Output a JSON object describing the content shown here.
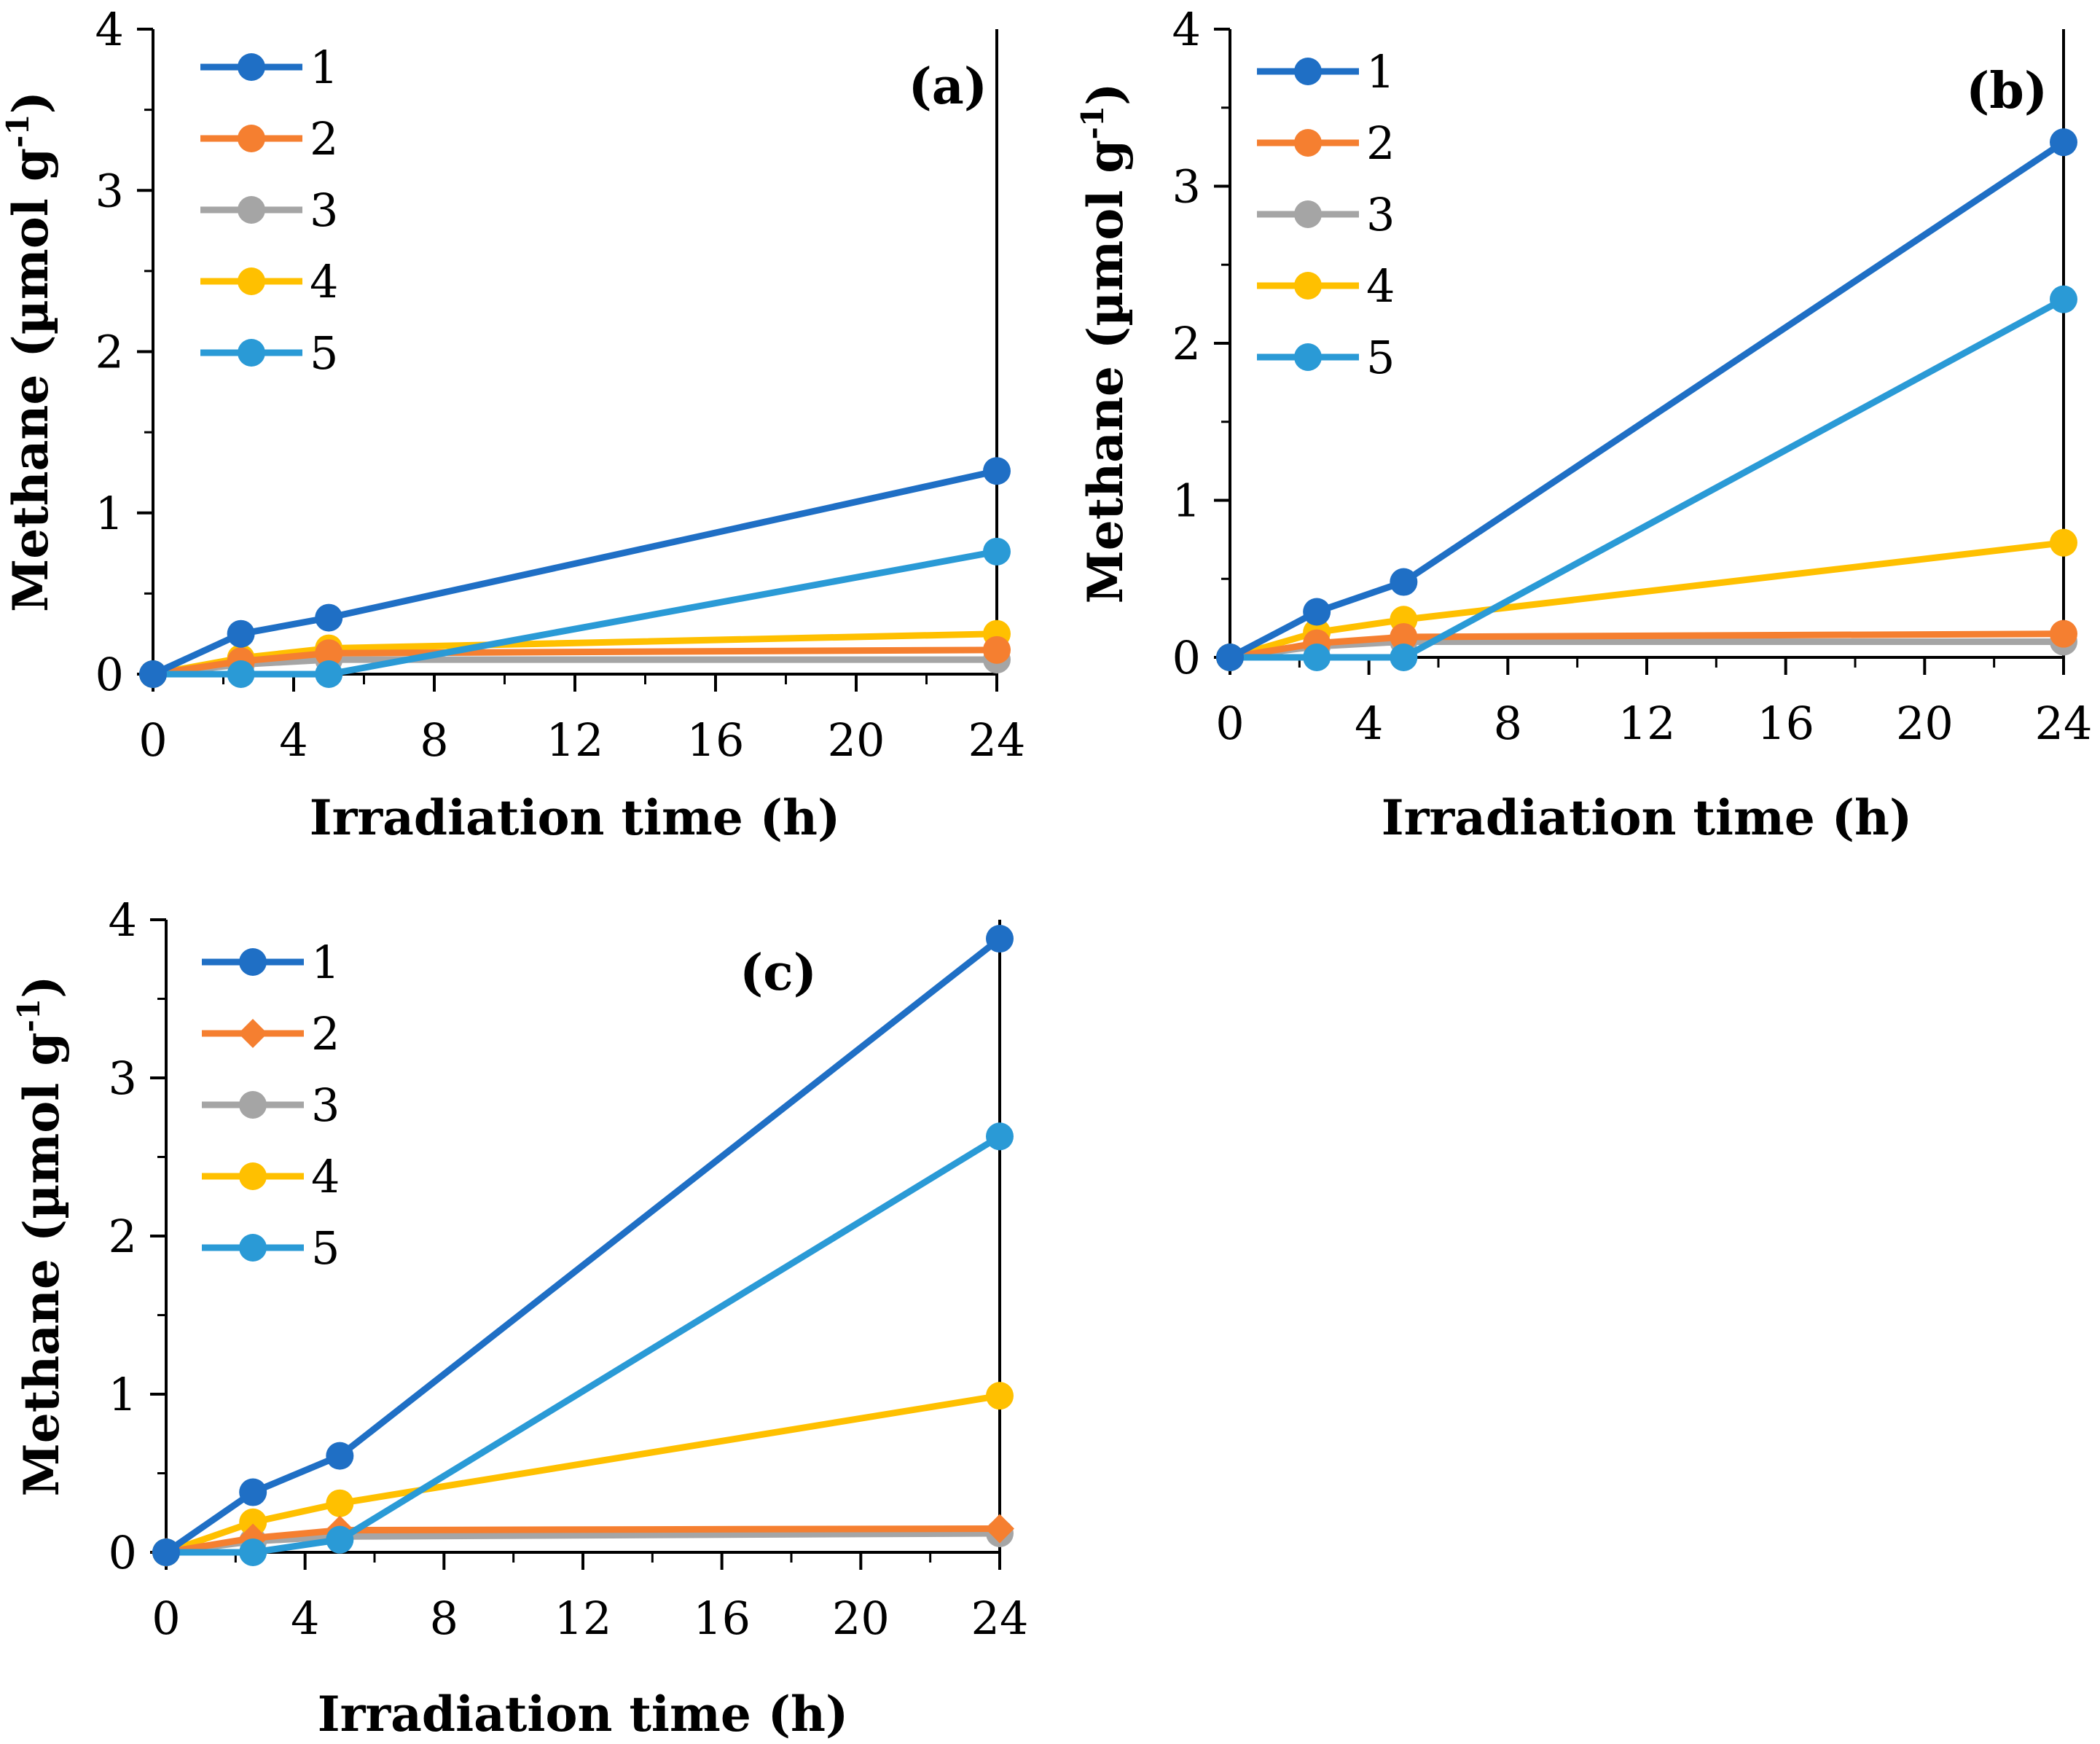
{
  "chart_data": [
    {
      "type": "line",
      "panel_label": "(a)",
      "xlabel": "Irradiation time (h)",
      "ylabel": "Methane (µmol g",
      "ylabel_sup": "-1",
      "ylabel_close": ")",
      "xlim": [
        0,
        24
      ],
      "ylim": [
        0,
        4
      ],
      "xticks": [
        "0",
        "4",
        "8",
        "12",
        "16",
        "20",
        "24"
      ],
      "yticks": [
        "0",
        "1",
        "2",
        "3",
        "4"
      ],
      "x": [
        0,
        2.5,
        5,
        24
      ],
      "series": [
        {
          "name": "1",
          "color": "#1f6fc5",
          "marker": "circle",
          "values": [
            0,
            0.25,
            0.35,
            1.26
          ]
        },
        {
          "name": "2",
          "color": "#f57f30",
          "marker": "circle",
          "values": [
            0,
            0.08,
            0.13,
            0.15
          ]
        },
        {
          "name": "3",
          "color": "#a5a5a5",
          "marker": "circle",
          "values": [
            0,
            0.06,
            0.09,
            0.09
          ]
        },
        {
          "name": "4",
          "color": "#ffc000",
          "marker": "circle",
          "values": [
            0,
            0.1,
            0.16,
            0.25
          ]
        },
        {
          "name": "5",
          "color": "#2a9ad6",
          "marker": "circle",
          "values": [
            0,
            0.0,
            0.0,
            0.76
          ]
        }
      ]
    },
    {
      "type": "line",
      "panel_label": "(b)",
      "xlabel": "Irradiation time (h)",
      "ylabel": "Methane (µmol g",
      "ylabel_sup": "-1",
      "ylabel_close": ")",
      "xlim": [
        0,
        24
      ],
      "ylim": [
        0,
        4
      ],
      "xticks": [
        "0",
        "4",
        "8",
        "12",
        "16",
        "20",
        "24"
      ],
      "yticks": [
        "0",
        "1",
        "2",
        "3",
        "4"
      ],
      "x": [
        0,
        2.5,
        5,
        24
      ],
      "series": [
        {
          "name": "1",
          "color": "#1f6fc5",
          "marker": "circle",
          "values": [
            0,
            0.29,
            0.48,
            3.28
          ]
        },
        {
          "name": "2",
          "color": "#f57f30",
          "marker": "circle",
          "values": [
            0,
            0.09,
            0.13,
            0.15
          ]
        },
        {
          "name": "3",
          "color": "#a5a5a5",
          "marker": "circle",
          "values": [
            0,
            0.07,
            0.1,
            0.1
          ]
        },
        {
          "name": "4",
          "color": "#ffc000",
          "marker": "circle",
          "values": [
            0,
            0.16,
            0.24,
            0.73
          ]
        },
        {
          "name": "5",
          "color": "#2a9ad6",
          "marker": "circle",
          "values": [
            0,
            0.0,
            0.0,
            2.28
          ]
        }
      ]
    },
    {
      "type": "line",
      "panel_label": "(c)",
      "xlabel": "Irradiation time (h)",
      "ylabel": "Methane (µmol g",
      "ylabel_sup": "-1",
      "ylabel_close": ")",
      "xlim": [
        0,
        24
      ],
      "ylim": [
        0,
        4
      ],
      "xticks": [
        "0",
        "4",
        "8",
        "12",
        "16",
        "20",
        "24"
      ],
      "yticks": [
        "0",
        "1",
        "2",
        "3",
        "4"
      ],
      "x": [
        0,
        2.5,
        5,
        24
      ],
      "series": [
        {
          "name": "1",
          "color": "#1f6fc5",
          "marker": "circle",
          "values": [
            0,
            0.38,
            0.61,
            3.88
          ]
        },
        {
          "name": "2",
          "color": "#f57f30",
          "marker": "diamond",
          "values": [
            0,
            0.09,
            0.14,
            0.15
          ]
        },
        {
          "name": "3",
          "color": "#a5a5a5",
          "marker": "circle",
          "values": [
            0,
            0.07,
            0.1,
            0.12
          ]
        },
        {
          "name": "4",
          "color": "#ffc000",
          "marker": "circle",
          "values": [
            0,
            0.19,
            0.31,
            0.99
          ]
        },
        {
          "name": "5",
          "color": "#2a9ad6",
          "marker": "circle",
          "values": [
            0,
            0.0,
            0.08,
            2.63
          ]
        }
      ]
    }
  ]
}
